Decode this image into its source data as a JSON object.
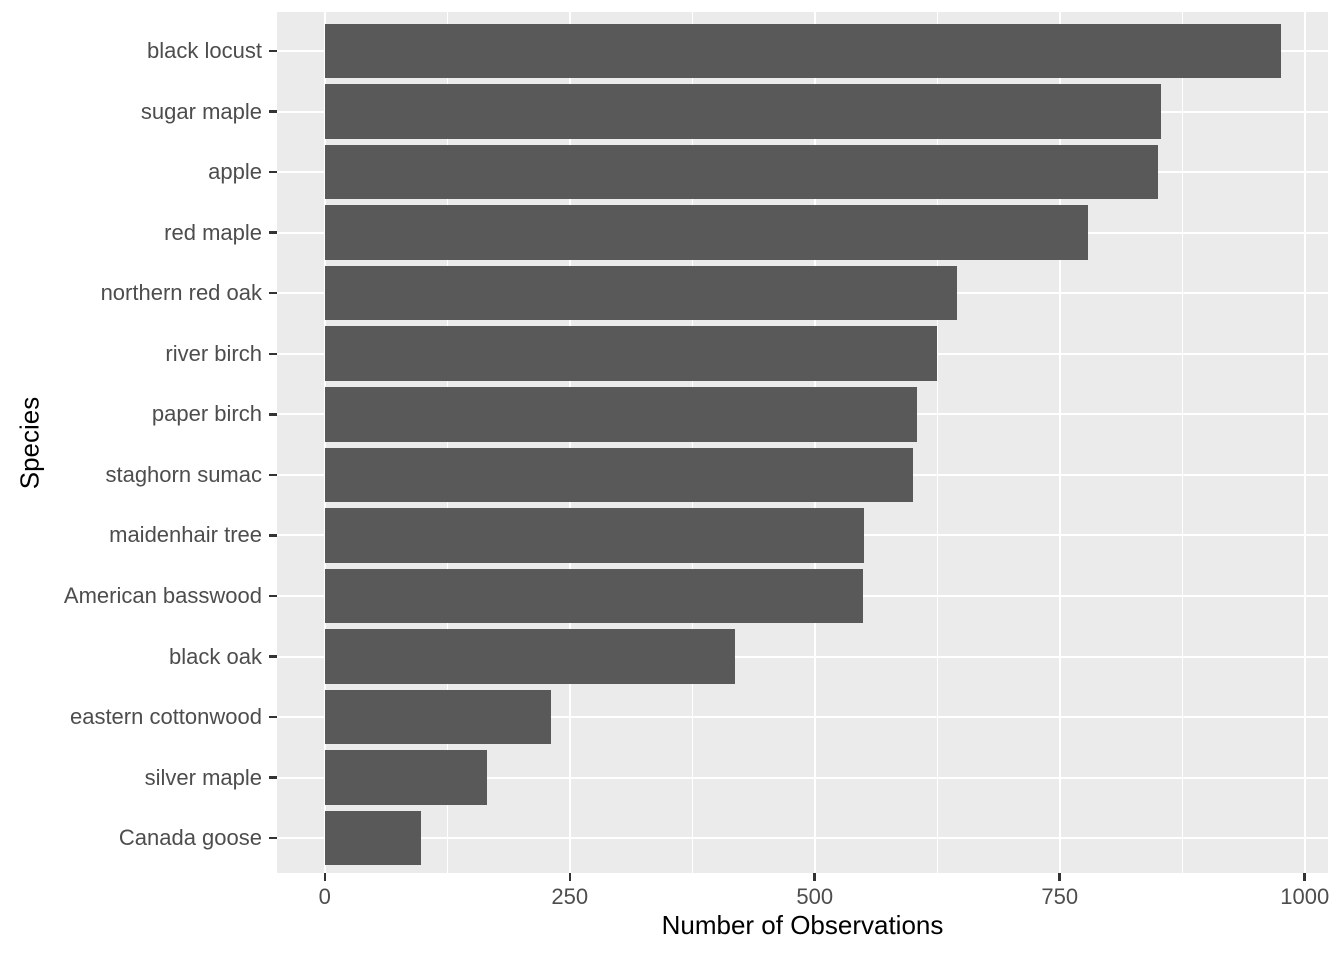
{
  "chart_data": {
    "type": "bar",
    "orientation": "horizontal",
    "title": "",
    "xlabel": "Number of Observations",
    "ylabel": "Species",
    "categories": [
      "black locust",
      "sugar maple",
      "apple",
      "red maple",
      "northern red oak",
      "river birch",
      "paper birch",
      "staghorn sumac",
      "maidenhair tree",
      "American basswood",
      "black oak",
      "eastern cottonwood",
      "silver maple",
      "Canada goose"
    ],
    "values": [
      976,
      853,
      850,
      779,
      645,
      625,
      604,
      600,
      550,
      549,
      419,
      231,
      166,
      98
    ],
    "x_ticks": [
      0,
      250,
      500,
      750,
      1000
    ],
    "x_minor_ticks": [
      125,
      375,
      625,
      875
    ],
    "xlim": [
      -48.75,
      1023.75
    ],
    "grid": "on",
    "legend": "none",
    "colors": {
      "bar": "#595959",
      "panel_bg": "#EBEBEB",
      "grid": "#FFFFFF",
      "tick_label": "#4D4D4D",
      "axis_title": "#000000",
      "tick_mark": "#333333",
      "figure_bg": "#FFFFFF"
    }
  }
}
